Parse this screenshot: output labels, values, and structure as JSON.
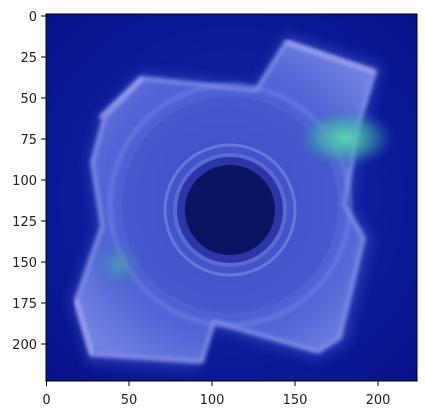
{
  "figure": {
    "x_axis": {
      "range": [
        0,
        224
      ],
      "ticks": [
        0,
        50,
        100,
        150,
        200
      ],
      "tick_labels": [
        "0",
        "50",
        "100",
        "150",
        "200"
      ]
    },
    "y_axis": {
      "range": [
        0,
        224
      ],
      "inverted": true,
      "ticks": [
        0,
        25,
        50,
        75,
        100,
        125,
        150,
        175,
        200
      ],
      "tick_labels": [
        "0",
        "25",
        "50",
        "75",
        "100",
        "125",
        "150",
        "175",
        "200"
      ]
    },
    "image": {
      "subject": "heatmap-overlay-on-metal-nut",
      "colors": {
        "background": "#0a1a9a",
        "part": "#5a6ad8",
        "hole": "#0b1460",
        "hotspot": "#4fd6a8"
      }
    }
  }
}
